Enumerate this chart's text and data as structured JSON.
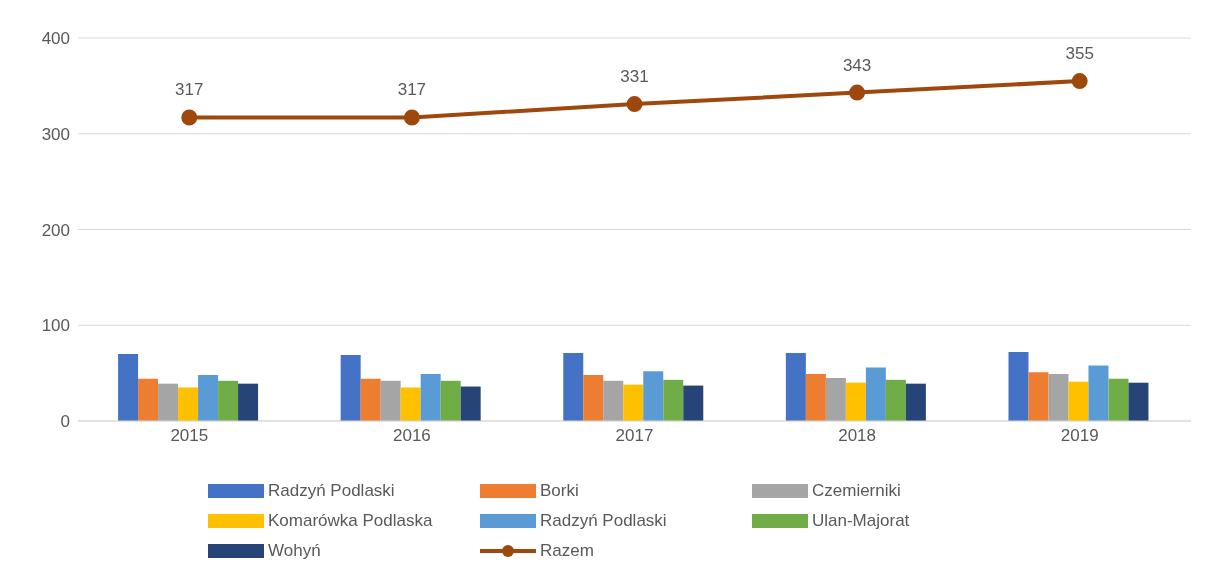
{
  "chart_data": {
    "type": "bar",
    "categories": [
      "2015",
      "2016",
      "2017",
      "2018",
      "2019"
    ],
    "series": [
      {
        "name": "Radzyń Podlaski",
        "color": "#4472c4",
        "values": [
          70,
          69,
          71,
          71,
          72
        ]
      },
      {
        "name": "Borki",
        "color": "#ed7d31",
        "values": [
          44,
          44,
          48,
          49,
          51
        ]
      },
      {
        "name": "Czemierniki",
        "color": "#a5a5a5",
        "values": [
          39,
          42,
          42,
          45,
          49
        ]
      },
      {
        "name": "Komarówka Podlaska",
        "color": "#ffc000",
        "values": [
          35,
          35,
          38,
          40,
          41
        ]
      },
      {
        "name": "Radzyń Podlaski",
        "color": "#5b9bd5",
        "values": [
          48,
          49,
          52,
          56,
          58
        ]
      },
      {
        "name": "Ulan-Majorat",
        "color": "#70ad47",
        "values": [
          42,
          42,
          43,
          43,
          44
        ]
      },
      {
        "name": "Wohyń",
        "color": "#264478",
        "values": [
          39,
          36,
          37,
          39,
          40
        ]
      },
      {
        "name": "Razem",
        "color": "#9e480e",
        "type": "line",
        "marker": "circle",
        "values": [
          317,
          317,
          331,
          343,
          355
        ],
        "value_labels": [
          "317",
          "317",
          "331",
          "343",
          "355"
        ]
      }
    ],
    "ylim": [
      0,
      400
    ],
    "yticks": [
      0,
      100,
      200,
      300,
      400
    ],
    "grid": "y",
    "legend": "bottom"
  }
}
